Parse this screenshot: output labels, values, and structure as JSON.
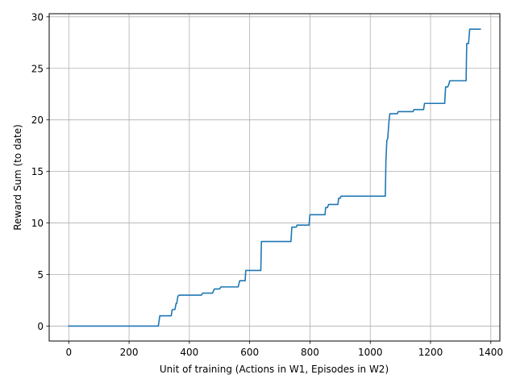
{
  "chart_data": {
    "type": "line",
    "title": "",
    "xlabel": "Unit of training (Actions in W1, Episodes in W2)",
    "ylabel": "Reward Sum (to date)",
    "xlim": [
      -65,
      1430
    ],
    "ylim": [
      -1.45,
      30.3
    ],
    "xticks": [
      0,
      200,
      400,
      600,
      800,
      1000,
      1200,
      1400
    ],
    "yticks": [
      0,
      5,
      10,
      15,
      20,
      25,
      30
    ],
    "grid": true,
    "legend": "none",
    "line_color": "#1f77b4",
    "series": [
      {
        "x": [
          0,
          297,
          302,
          340,
          343,
          352,
          356,
          358,
          362,
          366,
          440,
          444,
          477,
          483,
          500,
          505,
          562,
          567,
          585,
          587,
          637,
          639,
          737,
          740,
          755,
          757,
          797,
          800,
          850,
          852,
          858,
          862,
          893,
          895,
          900,
          903,
          1050,
          1052,
          1055,
          1058,
          1062,
          1065,
          1068,
          1090,
          1093,
          1142,
          1145,
          1177,
          1180,
          1247,
          1250,
          1257,
          1260,
          1264,
          1318,
          1320,
          1326,
          1330,
          1365
        ],
        "y": [
          0,
          0,
          1.0,
          1.0,
          1.6,
          1.6,
          2.2,
          2.2,
          2.9,
          3.0,
          3.0,
          3.2,
          3.2,
          3.6,
          3.6,
          3.8,
          3.8,
          4.4,
          4.4,
          5.4,
          5.4,
          8.2,
          8.2,
          9.6,
          9.6,
          9.8,
          9.8,
          10.8,
          10.8,
          11.5,
          11.5,
          11.8,
          11.8,
          12.4,
          12.4,
          12.6,
          12.6,
          16.0,
          18.0,
          18.2,
          19.8,
          20.6,
          20.6,
          20.6,
          20.8,
          20.8,
          21.0,
          21.0,
          21.6,
          21.6,
          23.2,
          23.2,
          23.4,
          23.8,
          23.8,
          27.4,
          27.4,
          28.8,
          28.8
        ]
      }
    ]
  }
}
